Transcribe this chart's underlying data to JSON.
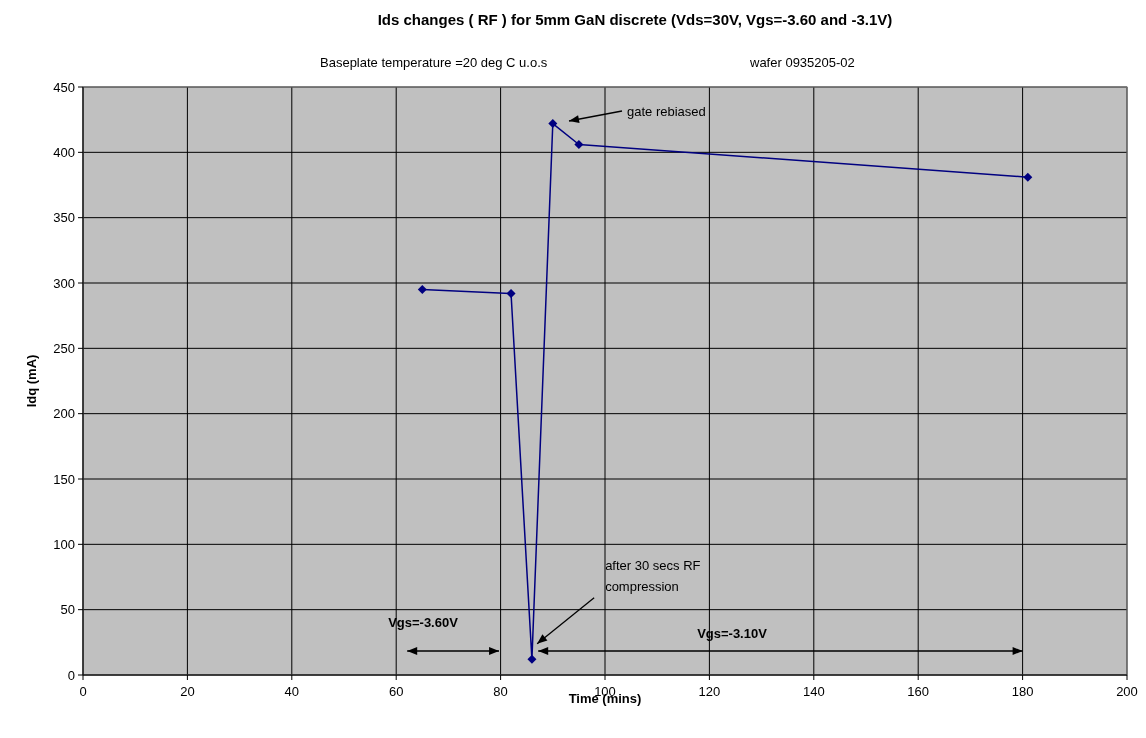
{
  "chart_data": {
    "type": "line",
    "title": "Ids changes ( RF ) for 5mm GaN discrete (Vds=30V, Vgs=-3.60 and -3.1V)",
    "subtitle": "Baseplate temperature =20 deg C u.o.s",
    "xlabel": "Time (mins)",
    "ylabel": "Idq (mA)",
    "x": [
      65,
      82,
      86,
      90,
      95,
      181
    ],
    "series": [
      {
        "color": "#000080",
        "values": [
          295,
          292,
          12,
          422,
          406,
          381
        ]
      }
    ],
    "xlim": [
      0,
      200
    ],
    "xticks": [
      0,
      20,
      40,
      60,
      80,
      100,
      120,
      140,
      160,
      180,
      200
    ],
    "ylim": [
      0,
      450
    ],
    "yticks": [
      0,
      50,
      100,
      150,
      200,
      250,
      300,
      350,
      400,
      450
    ],
    "grid": true,
    "marker": "diamond",
    "line_style": "solid",
    "annotations": [
      "wafer 0935205-02",
      "gate rebiased",
      {
        "text": "after 30 secs RF compression",
        "x": 87,
        "y": 24
      },
      "Vgs=-3.60V",
      "Vgs=-3.10V"
    ]
  }
}
